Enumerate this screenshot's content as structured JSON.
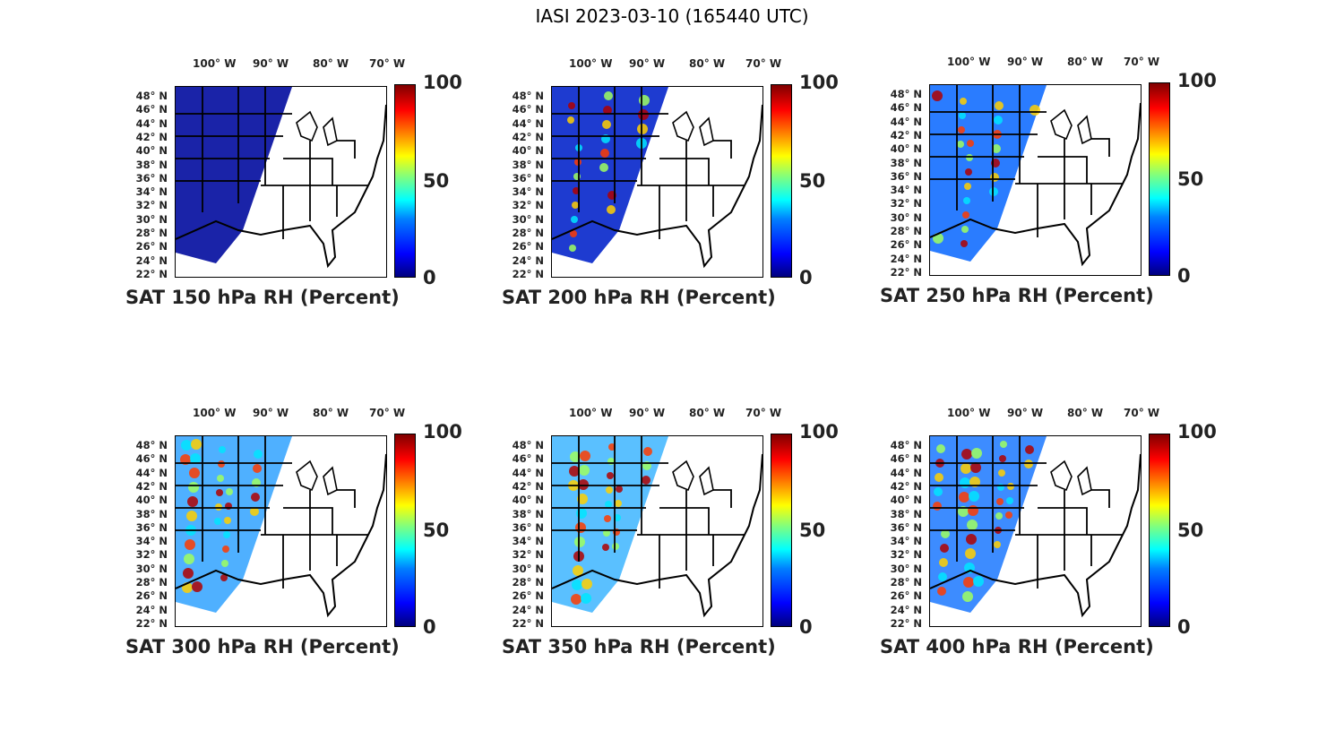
{
  "title": "IASI 2023-03-10 (165440 UTC)",
  "lon_labels": [
    "100° W",
    "90° W",
    "80° W",
    "70° W"
  ],
  "lat_labels": [
    "48° N",
    "46° N",
    "44° N",
    "42° N",
    "40° N",
    "38° N",
    "36° N",
    "34° N",
    "32° N",
    "30° N",
    "28° N",
    "26° N",
    "24° N",
    "22° N"
  ],
  "colorbar": {
    "ticks": [
      "100",
      "50",
      "0"
    ],
    "colormap": "jet",
    "range": [
      0,
      100
    ]
  },
  "panels": [
    {
      "label": "SAT 150 hPa RH (Percent)",
      "pressure_hpa": 150,
      "dominant_color": "#1a23a8"
    },
    {
      "label": "SAT 200 hPa RH (Percent)",
      "pressure_hpa": 200,
      "dominant_color": "#1e3bd0"
    },
    {
      "label": "SAT 250 hPa RH (Percent)",
      "pressure_hpa": 250,
      "dominant_color": "#2a7cff"
    },
    {
      "label": "SAT 300 hPa RH (Percent)",
      "pressure_hpa": 300,
      "dominant_color": "#4fb0ff"
    },
    {
      "label": "SAT 350 hPa RH (Percent)",
      "pressure_hpa": 350,
      "dominant_color": "#5ac0ff"
    },
    {
      "label": "SAT 400 hPa RH (Percent)",
      "pressure_hpa": 400,
      "dominant_color": "#3d8cff"
    }
  ]
}
